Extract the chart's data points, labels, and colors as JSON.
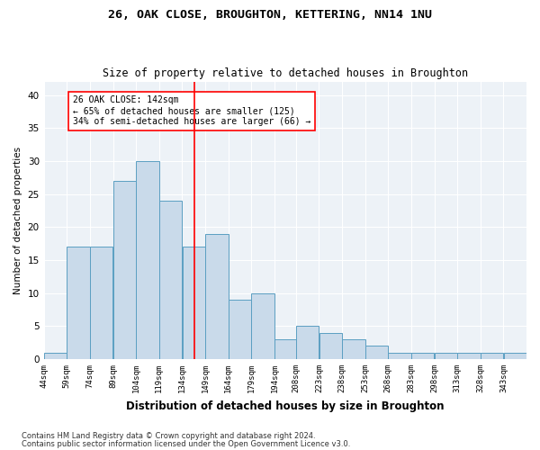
{
  "title1": "26, OAK CLOSE, BROUGHTON, KETTERING, NN14 1NU",
  "title2": "Size of property relative to detached houses in Broughton",
  "xlabel": "Distribution of detached houses by size in Broughton",
  "ylabel": "Number of detached properties",
  "bin_labels": [
    "44sqm",
    "59sqm",
    "74sqm",
    "89sqm",
    "104sqm",
    "119sqm",
    "134sqm",
    "149sqm",
    "164sqm",
    "179sqm",
    "194sqm",
    "208sqm",
    "223sqm",
    "238sqm",
    "253sqm",
    "268sqm",
    "283sqm",
    "298sqm",
    "313sqm",
    "328sqm",
    "343sqm"
  ],
  "bin_edges": [
    44,
    59,
    74,
    89,
    104,
    119,
    134,
    149,
    164,
    179,
    194,
    208,
    223,
    238,
    253,
    268,
    283,
    298,
    313,
    328,
    343,
    358
  ],
  "bar_values": [
    1,
    17,
    17,
    27,
    30,
    24,
    17,
    19,
    9,
    10,
    3,
    5,
    4,
    3,
    2,
    1,
    1,
    1,
    1,
    1,
    1
  ],
  "bar_color": "#c9daea",
  "bar_edgecolor": "#5b9fc2",
  "redline_x": 142,
  "annotation_title": "26 OAK CLOSE: 142sqm",
  "annotation_line1": "← 65% of detached houses are smaller (125)",
  "annotation_line2": "34% of semi-detached houses are larger (66) →",
  "ylim": [
    0,
    42
  ],
  "yticks": [
    0,
    5,
    10,
    15,
    20,
    25,
    30,
    35,
    40
  ],
  "footnote1": "Contains HM Land Registry data © Crown copyright and database right 2024.",
  "footnote2": "Contains public sector information licensed under the Open Government Licence v3.0.",
  "bg_color": "#edf2f7"
}
